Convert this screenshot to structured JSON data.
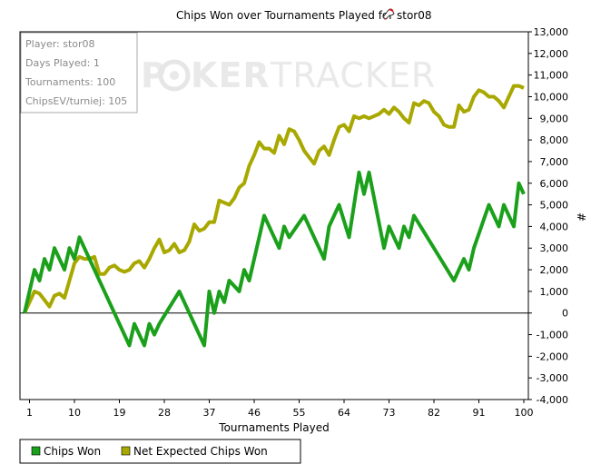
{
  "title_prefix": "Chips Won over Tournaments Played for",
  "player_name": "stor08",
  "info_box": {
    "lines": [
      "Player: stor08",
      "Days Played: 1",
      "Tournaments: 100",
      "ChipsEV/turniej: 105"
    ]
  },
  "watermark": {
    "left": "P",
    "logo": "O",
    "mid": "KER",
    "right": "TRACKER"
  },
  "colors": {
    "chips_won": "#1ba01b",
    "net_expected": "#a8a800",
    "axis": "#000000"
  },
  "legend": {
    "items": [
      "Chips Won",
      "Net Expected Chips Won"
    ]
  },
  "chart_data": {
    "type": "line",
    "xlabel": "Tournaments Played",
    "ylabel": "#",
    "xlim": [
      0,
      100
    ],
    "ylim": [
      -4000,
      13000
    ],
    "x_ticks": [
      1,
      10,
      19,
      28,
      37,
      46,
      55,
      64,
      73,
      82,
      91,
      100
    ],
    "y_ticks": [
      -4000,
      -3000,
      -2000,
      -1000,
      0,
      1000,
      2000,
      3000,
      4000,
      5000,
      6000,
      7000,
      8000,
      9000,
      10000,
      11000,
      12000,
      13000
    ],
    "y_tick_labels": [
      "-4,000",
      "-3,000",
      "-2,000",
      "-1,000",
      "0",
      "1,000",
      "2,000",
      "3,000",
      "4,000",
      "5,000",
      "6,000",
      "7,000",
      "8,000",
      "9,000",
      "10,000",
      "11,000",
      "12,000",
      "13,000"
    ],
    "series": [
      {
        "name": "Chips Won",
        "color": "#1ba01b",
        "x": [
          0,
          2,
          3,
          4,
          5,
          6,
          7,
          8,
          9,
          10,
          11,
          21,
          22,
          23,
          24,
          25,
          26,
          27,
          31,
          32,
          33,
          34,
          35,
          36,
          37,
          38,
          39,
          40,
          41,
          43,
          44,
          45,
          48,
          49,
          50,
          51,
          52,
          53,
          56,
          57,
          58,
          60,
          61,
          63,
          65,
          67,
          68,
          69,
          72,
          73,
          74,
          75,
          76,
          77,
          78,
          86,
          88,
          89,
          90,
          93,
          94,
          95,
          96,
          97,
          98,
          99,
          100
        ],
        "y": [
          0,
          2000,
          1500,
          2500,
          2000,
          3000,
          2500,
          2000,
          3000,
          2500,
          3500,
          -1500,
          -500,
          -1000,
          -1500,
          -500,
          -1000,
          -500,
          1000,
          500,
          0,
          -500,
          -1000,
          -1500,
          1000,
          0,
          1000,
          500,
          1500,
          1000,
          2000,
          1500,
          4500,
          4000,
          3500,
          3000,
          4000,
          3500,
          4500,
          4000,
          3500,
          2500,
          4000,
          5000,
          3500,
          6500,
          5500,
          6500,
          3000,
          4000,
          3500,
          3000,
          4000,
          3500,
          4500,
          1500,
          2500,
          2000,
          3000,
          5000,
          4500,
          4000,
          5000,
          4500,
          4000,
          6000,
          5500
        ]
      },
      {
        "name": "Net Expected Chips Won",
        "color": "#a8a800",
        "x": [
          0,
          2,
          3,
          4,
          5,
          6,
          7,
          8,
          9,
          10,
          11,
          12,
          13,
          14,
          15,
          16,
          17,
          18,
          19,
          20,
          21,
          22,
          23,
          24,
          25,
          26,
          27,
          28,
          29,
          30,
          31,
          32,
          33,
          34,
          35,
          36,
          37,
          38,
          39,
          40,
          41,
          42,
          43,
          44,
          45,
          46,
          47,
          48,
          49,
          50,
          51,
          52,
          53,
          54,
          55,
          56,
          57,
          58,
          59,
          60,
          61,
          62,
          63,
          64,
          65,
          66,
          67,
          68,
          69,
          70,
          71,
          72,
          73,
          74,
          75,
          76,
          77,
          78,
          79,
          80,
          81,
          82,
          83,
          84,
          85,
          86,
          87,
          88,
          89,
          90,
          91,
          92,
          93,
          94,
          95,
          96,
          97,
          98,
          99,
          100
        ],
        "y": [
          0,
          1000,
          900,
          600,
          300,
          800,
          900,
          700,
          1500,
          2300,
          2600,
          2500,
          2500,
          2600,
          1800,
          1800,
          2100,
          2200,
          2000,
          1900,
          2000,
          2300,
          2400,
          2100,
          2500,
          3000,
          3400,
          2800,
          2900,
          3200,
          2800,
          2900,
          3300,
          4100,
          3800,
          3900,
          4200,
          4200,
          5200,
          5100,
          5000,
          5300,
          5800,
          6000,
          6800,
          7300,
          7900,
          7600,
          7600,
          7400,
          8200,
          7800,
          8500,
          8400,
          8000,
          7500,
          7200,
          6900,
          7500,
          7700,
          7300,
          8000,
          8600,
          8700,
          8400,
          9100,
          9000,
          9100,
          9000,
          9100,
          9200,
          9400,
          9200,
          9500,
          9300,
          9000,
          8800,
          9700,
          9600,
          9800,
          9700,
          9300,
          9100,
          8700,
          8600,
          8600,
          9600,
          9300,
          9400,
          10000,
          10300,
          10200,
          10000,
          10000,
          9800,
          9500,
          10000,
          10500,
          10500,
          10400
        ]
      }
    ]
  }
}
